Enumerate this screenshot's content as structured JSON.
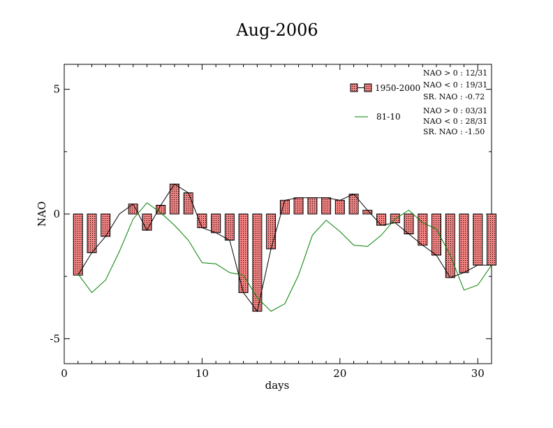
{
  "chart_data": {
    "type": "bar",
    "title": "Aug-2006",
    "xlabel": "days",
    "ylabel": "NAO",
    "xlim": [
      0,
      31
    ],
    "ylim": [
      -6,
      6
    ],
    "x_ticks": [
      0,
      10,
      20,
      30
    ],
    "y_ticks": [
      -5,
      0,
      5
    ],
    "grid": false,
    "legend_position": "top-right",
    "series": [
      {
        "name": "1950-2000",
        "type": "bar",
        "bar_color": "#f08080",
        "line_color": "#000000",
        "x": [
          1,
          2,
          3,
          4,
          5,
          6,
          7,
          8,
          9,
          10,
          11,
          12,
          13,
          14,
          15,
          16,
          17,
          18,
          19,
          20,
          21,
          22,
          23,
          24,
          25,
          26,
          27,
          28,
          29,
          30,
          31
        ],
        "values": [
          -2.45,
          -1.55,
          -0.9,
          0.0,
          0.4,
          -0.65,
          0.35,
          1.2,
          0.85,
          -0.55,
          -0.75,
          -1.05,
          -3.15,
          -3.9,
          -1.4,
          0.55,
          0.65,
          0.65,
          0.65,
          0.55,
          0.8,
          0.15,
          -0.45,
          -0.35,
          -0.8,
          -1.25,
          -1.65,
          -2.55,
          -2.35,
          -2.05,
          -2.05
        ]
      },
      {
        "name": "81-10",
        "type": "line",
        "line_color": "#008000",
        "x": [
          1,
          2,
          3,
          4,
          5,
          6,
          7,
          8,
          9,
          10,
          11,
          12,
          13,
          14,
          15,
          16,
          17,
          18,
          19,
          20,
          21,
          22,
          23,
          24,
          25,
          26,
          27,
          28,
          29,
          30,
          31
        ],
        "values": [
          -2.4,
          -3.15,
          -2.65,
          -1.5,
          -0.2,
          0.45,
          0.05,
          -0.45,
          -1.05,
          -1.95,
          -2.0,
          -2.35,
          -2.45,
          -3.35,
          -3.9,
          -3.6,
          -2.45,
          -0.85,
          -0.25,
          -0.7,
          -1.25,
          -1.3,
          -0.85,
          -0.2,
          0.15,
          -0.35,
          -0.6,
          -1.65,
          -3.05,
          -2.85,
          -2.05
        ]
      }
    ],
    "stats": {
      "1950-2000": [
        "NAO > 0 : 12/31",
        "NAO < 0 : 19/31",
        "SR. NAO : -0.72"
      ],
      "81-10": [
        "NAO > 0 : 03/31",
        "NAO < 0 : 28/31",
        "SR. NAO : -1.50"
      ]
    }
  }
}
